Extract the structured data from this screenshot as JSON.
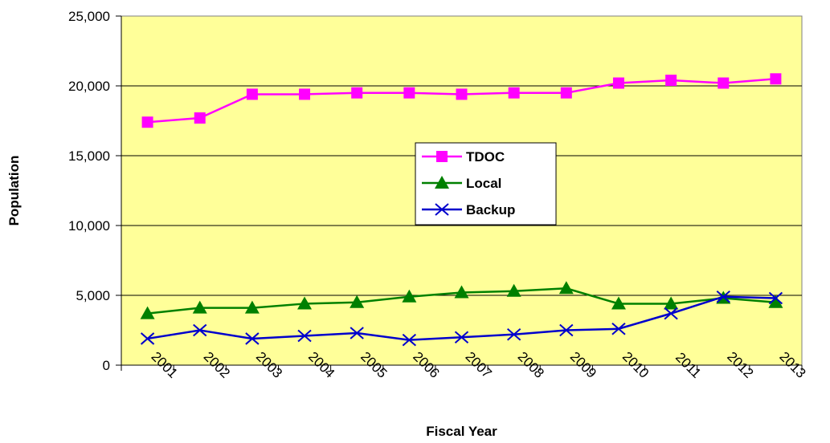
{
  "chart_data": {
    "type": "line",
    "title": "",
    "xlabel": "Fiscal Year",
    "ylabel": "Population",
    "ylim": [
      0,
      25000
    ],
    "yticks": [
      "0",
      "5,000",
      "10,000",
      "15,000",
      "20,000",
      "25,000"
    ],
    "categories": [
      "2001",
      "2002",
      "2003",
      "2004",
      "2005",
      "2006",
      "2007",
      "2008",
      "2009",
      "2010",
      "2011",
      "2012",
      "2013"
    ],
    "grid": "horizontal",
    "legend_position": "center",
    "series": [
      {
        "name": "TDOC",
        "color": "#ff00ff",
        "marker": "square",
        "values": [
          17400,
          17700,
          19400,
          19400,
          19500,
          19500,
          19400,
          19500,
          19500,
          20200,
          20400,
          20200,
          20500
        ]
      },
      {
        "name": "Local",
        "color": "#008000",
        "marker": "triangle",
        "values": [
          3700,
          4100,
          4100,
          4400,
          4500,
          4900,
          5200,
          5300,
          5500,
          4400,
          4400,
          4800,
          4500
        ]
      },
      {
        "name": "Backup",
        "color": "#0000cc",
        "marker": "x",
        "values": [
          1900,
          2500,
          1900,
          2100,
          2300,
          1800,
          2000,
          2200,
          2500,
          2600,
          3700,
          4900,
          4800
        ]
      }
    ]
  }
}
